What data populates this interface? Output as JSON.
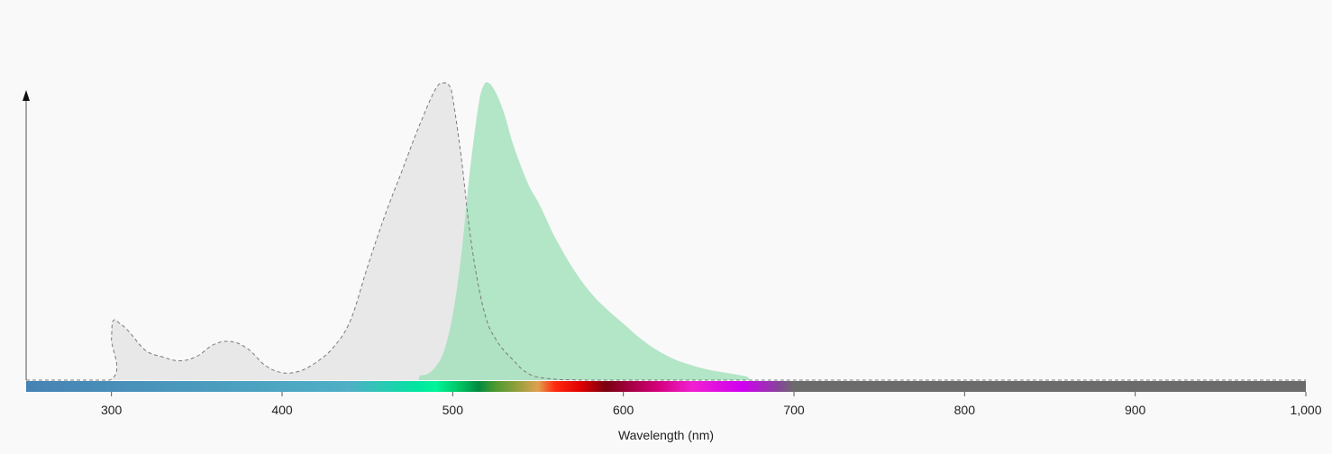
{
  "colors": {
    "background": "#f9f9f9",
    "axis": "#555555",
    "excitation_fill": "#e8e8e8",
    "excitation_stroke": "#7a7a7a",
    "emission_fill": "#9fdfb8",
    "ir_band": "#6b6b6b"
  },
  "chart_data": {
    "type": "area",
    "xlabel": "Wavelength (nm)",
    "ylabel": "",
    "xlim": [
      250,
      1000
    ],
    "ylim": [
      0,
      1
    ],
    "x_ticks": [
      300,
      400,
      500,
      600,
      700,
      800,
      900,
      1000
    ],
    "x_tick_labels": [
      "300",
      "400",
      "500",
      "600",
      "700",
      "800",
      "900",
      "1,000"
    ],
    "grid": false,
    "legend": "none",
    "series": [
      {
        "style": "dashed-outline-gray-fill",
        "x": [
          250,
          299,
          300,
          301,
          305,
          310,
          320,
          330,
          340,
          350,
          360,
          370,
          380,
          390,
          400,
          410,
          420,
          430,
          440,
          450,
          460,
          470,
          480,
          490,
          495,
          498,
          500,
          505,
          510,
          515,
          520,
          525,
          530,
          535,
          540,
          545,
          550,
          560,
          570,
          580,
          600,
          650,
          700,
          1000
        ],
        "y": [
          0,
          0,
          0.14,
          0.2,
          0.19,
          0.165,
          0.1,
          0.078,
          0.065,
          0.08,
          0.12,
          0.13,
          0.105,
          0.05,
          0.025,
          0.03,
          0.06,
          0.11,
          0.2,
          0.38,
          0.55,
          0.7,
          0.85,
          0.98,
          1.0,
          0.99,
          0.95,
          0.75,
          0.5,
          0.32,
          0.2,
          0.14,
          0.1,
          0.07,
          0.04,
          0.02,
          0.01,
          0.003,
          0.001,
          0,
          0,
          0,
          0,
          0
        ]
      },
      {
        "style": "solid-green-fill",
        "x": [
          480,
          481,
          485,
          490,
          495,
          500,
          505,
          510,
          515,
          518,
          521,
          525,
          530,
          535,
          540,
          545,
          550,
          555,
          560,
          570,
          580,
          590,
          600,
          610,
          620,
          630,
          640,
          650,
          660,
          670,
          673,
          674
        ],
        "y": [
          0,
          0.015,
          0.02,
          0.045,
          0.1,
          0.22,
          0.42,
          0.7,
          0.92,
          0.99,
          1.0,
          0.97,
          0.9,
          0.8,
          0.72,
          0.65,
          0.6,
          0.54,
          0.48,
          0.38,
          0.3,
          0.24,
          0.19,
          0.14,
          0.1,
          0.07,
          0.05,
          0.035,
          0.025,
          0.015,
          0.01,
          0
        ]
      }
    ],
    "spectrum_bar": {
      "stops": [
        {
          "nm": 250,
          "color": "#4682b4"
        },
        {
          "nm": 440,
          "color": "#4fb0c6"
        },
        {
          "nm": 480,
          "color": "#00e6a0"
        },
        {
          "nm": 490,
          "color": "#00f59a"
        },
        {
          "nm": 505,
          "color": "#00c060"
        },
        {
          "nm": 515,
          "color": "#008a40"
        },
        {
          "nm": 525,
          "color": "#4d9a30"
        },
        {
          "nm": 540,
          "color": "#a0a040"
        },
        {
          "nm": 550,
          "color": "#e0a050"
        },
        {
          "nm": 560,
          "color": "#ff2a10"
        },
        {
          "nm": 575,
          "color": "#e00000"
        },
        {
          "nm": 590,
          "color": "#7a0010"
        },
        {
          "nm": 620,
          "color": "#d4007a"
        },
        {
          "nm": 640,
          "color": "#f020d0"
        },
        {
          "nm": 670,
          "color": "#d000f0"
        },
        {
          "nm": 690,
          "color": "#8a40a0"
        },
        {
          "nm": 700,
          "color": "#6b6b6b"
        },
        {
          "nm": 1000,
          "color": "#6b6b6b"
        }
      ]
    }
  }
}
